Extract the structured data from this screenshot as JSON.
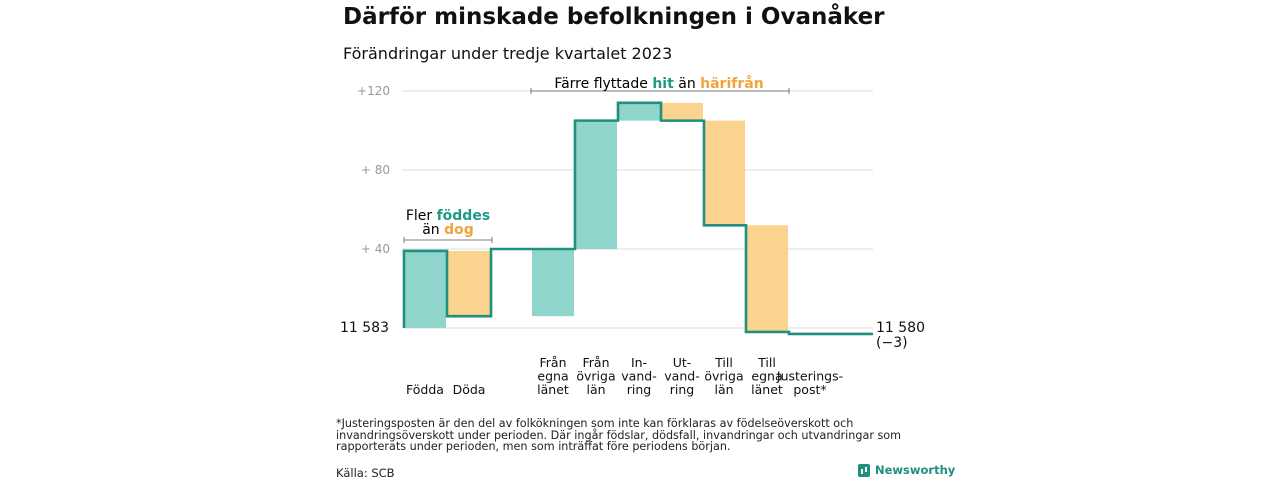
{
  "header": {
    "title": "Därför minskade befolkningen i Ovanåker",
    "subtitle": "Förändringar under tredje kvartalet 2023"
  },
  "annotations": {
    "births": {
      "line1_pre": "Fler",
      "line1_hl": "föddes",
      "line2_pre": "än",
      "line2_hl": "dog"
    },
    "migration": {
      "pre": "Färre flyttade",
      "hl1": "hit",
      "mid": "än",
      "hl2": "härifrån"
    }
  },
  "chart_data": {
    "type": "waterfall",
    "start_label": "11  583",
    "start_value": 11583,
    "end_label": "11 580",
    "end_change": "(−3)",
    "y_baseline_label": "11 583",
    "yticks": [
      {
        "value": 40,
        "label": "+ 40"
      },
      {
        "value": 80,
        "label": "+ 80"
      },
      {
        "value": 120,
        "label": "+120"
      }
    ],
    "ylim": [
      0,
      120
    ],
    "steps": [
      {
        "label": [
          "Födda"
        ],
        "from": 0,
        "to": 39,
        "kind": "in"
      },
      {
        "label": [
          "Döda"
        ],
        "from": 39,
        "to": 6,
        "kind": "out"
      },
      {
        "label": [
          "Från",
          "egna",
          "länet"
        ],
        "from": 6,
        "to": 40,
        "kind": "in"
      },
      {
        "label": [
          "Från",
          "övriga",
          "län"
        ],
        "from": 40,
        "to": 105,
        "kind": "in"
      },
      {
        "label": [
          "In-",
          "vand-",
          "ring"
        ],
        "from": 105,
        "to": 114,
        "kind": "in"
      },
      {
        "label": [
          "Ut-",
          "vand-",
          "ring"
        ],
        "from": 114,
        "to": 105,
        "kind": "out"
      },
      {
        "label": [
          "Till",
          "övriga",
          "län"
        ],
        "from": 105,
        "to": 52,
        "kind": "out"
      },
      {
        "label": [
          "Till",
          "egna",
          "länet"
        ],
        "from": 52,
        "to": -2,
        "kind": "out"
      },
      {
        "label": [
          "Justerings-",
          "post*"
        ],
        "from": -2,
        "to": -3,
        "kind": "adjust"
      }
    ],
    "colors": {
      "in": "#8fd5cb",
      "out": "#fad48e",
      "line": "#1f8f7f",
      "grid": "#dddddd"
    }
  },
  "footer": {
    "footnote": "*Justeringsposten är den del av folkökningen som inte kan förklaras av födelseöverskott och invandringsöverskott under perioden. Där ingår födslar, dödsfall, invandringar och utvandringar som rapporterats under perioden, men som inträffat före periodens början.",
    "source": "Källa: SCB",
    "brand": "Newsworthy"
  }
}
